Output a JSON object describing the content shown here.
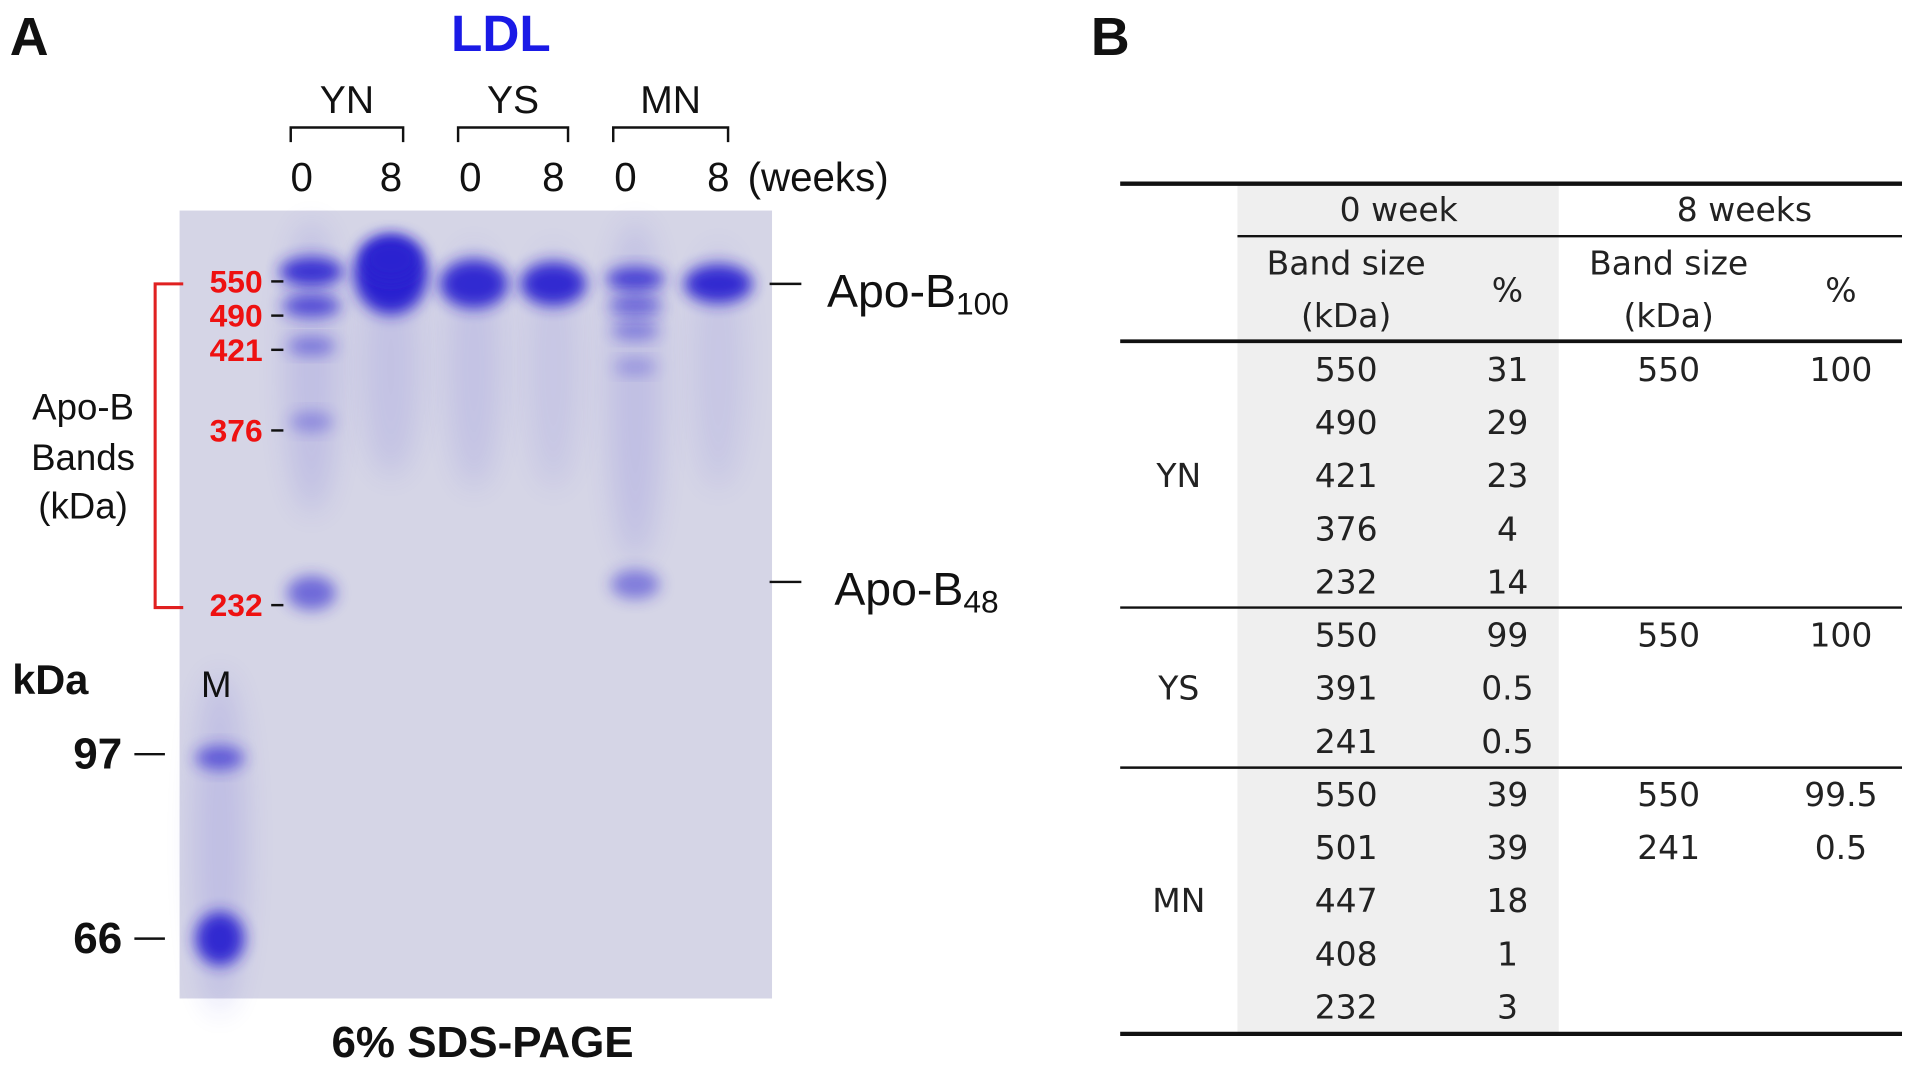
{
  "panel_a": {
    "label": "A",
    "title": "LDL",
    "groups": [
      "YN",
      "YS",
      "MN"
    ],
    "lanes": [
      "0",
      "8",
      "0",
      "8",
      "0",
      "8"
    ],
    "weeks": "(weeks)",
    "bracket_label": [
      "Apo-B",
      "Bands",
      "(kDa)"
    ],
    "bands": [
      "550",
      "490",
      "421",
      "376",
      "232"
    ],
    "apo_b100": {
      "text": "Apo-B",
      "sub": "100"
    },
    "apo_b48": {
      "text": "Apo-B",
      "sub": "48"
    },
    "kda": "kDa",
    "marker_lane": "M",
    "markers": [
      "97",
      "66"
    ],
    "caption": "6% SDS-PAGE"
  },
  "panel_b": {
    "label": "B",
    "week0": "0 week",
    "week8": "8 weeks",
    "band_size": [
      "Band size",
      "(kDa)"
    ],
    "percent": "%",
    "groups": [
      {
        "name": "YN",
        "week0": [
          [
            550,
            31
          ],
          [
            490,
            29
          ],
          [
            421,
            23
          ],
          [
            376,
            4
          ],
          [
            232,
            14
          ]
        ],
        "week8": [
          [
            550,
            100
          ]
        ]
      },
      {
        "name": "YS",
        "week0": [
          [
            550,
            99
          ],
          [
            391,
            0.5
          ],
          [
            241,
            0.5
          ]
        ],
        "week8": [
          [
            550,
            100
          ]
        ]
      },
      {
        "name": "MN",
        "week0": [
          [
            550,
            39
          ],
          [
            501,
            39
          ],
          [
            447,
            18
          ],
          [
            408,
            1
          ],
          [
            232,
            3
          ]
        ],
        "week8": [
          [
            550,
            99.5
          ],
          [
            241,
            0.5
          ]
        ]
      }
    ]
  }
}
